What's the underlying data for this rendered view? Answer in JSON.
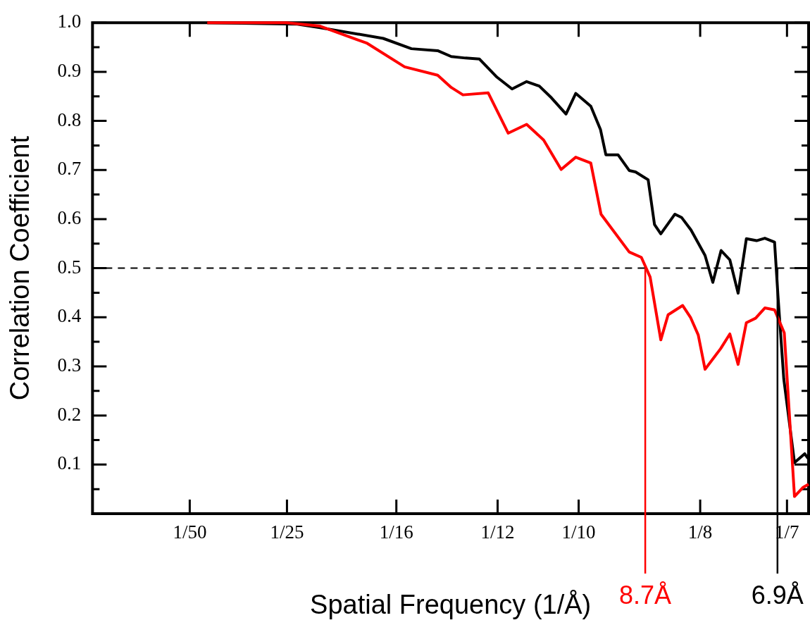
{
  "chart_data": {
    "type": "line",
    "xlabel": "Spatial Frequency (1/Å)",
    "ylabel": "Correlation Coefficient",
    "marker": "none",
    "line_style": "solid",
    "xlim": [
      0,
      0.1473
    ],
    "xticks": [
      {
        "value": 0.02,
        "label": "1/50"
      },
      {
        "value": 0.04,
        "label": "1/25"
      },
      {
        "value": 0.0625,
        "label": "1/16"
      },
      {
        "value": 0.08333,
        "label": "1/12"
      },
      {
        "value": 0.1,
        "label": "1/10"
      },
      {
        "value": 0.125,
        "label": "1/8"
      },
      {
        "value": 0.142857,
        "label": "1/7"
      }
    ],
    "ylim": [
      0,
      1
    ],
    "yticks": [
      {
        "value": 0.05,
        "label": null
      },
      0.1,
      {
        "value": 0.15,
        "label": null
      },
      0.2,
      {
        "value": 0.25,
        "label": null
      },
      0.3,
      {
        "value": 0.35,
        "label": null
      },
      0.4,
      {
        "value": 0.45,
        "label": null
      },
      0.5,
      {
        "value": 0.55,
        "label": null
      },
      0.6,
      {
        "value": 0.65,
        "label": null
      },
      0.7,
      {
        "value": 0.75,
        "label": null
      },
      0.8,
      {
        "value": 0.85,
        "label": null
      },
      0.9,
      {
        "value": 0.95,
        "label": null
      },
      {
        "value": 1,
        "label": "1.0"
      }
    ],
    "series": [
      {
        "color": "#000000",
        "x": [
          0.0236,
          0.0421,
          0.0468,
          0.0598,
          0.0656,
          0.071,
          0.0738,
          0.0767,
          0.0796,
          0.0832,
          0.0863,
          0.0893,
          0.0919,
          0.0944,
          0.0974,
          0.0994,
          0.1025,
          0.1045,
          0.1056,
          0.1081,
          0.1104,
          0.1117,
          0.1143,
          0.1156,
          0.1169,
          0.1198,
          0.1212,
          0.1231,
          0.126,
          0.1276,
          0.1293,
          0.1311,
          0.1328,
          0.1345,
          0.1366,
          0.1383,
          0.1403,
          0.141,
          0.1422,
          0.1444,
          0.1465,
          0.1473
        ],
        "values": [
          1.0,
          0.997,
          0.99,
          0.968,
          0.947,
          0.943,
          0.931,
          0.928,
          0.926,
          0.889,
          0.865,
          0.88,
          0.871,
          0.847,
          0.814,
          0.856,
          0.83,
          0.782,
          0.731,
          0.731,
          0.699,
          0.696,
          0.68,
          0.589,
          0.57,
          0.61,
          0.603,
          0.578,
          0.526,
          0.471,
          0.536,
          0.517,
          0.449,
          0.56,
          0.556,
          0.561,
          0.553,
          0.444,
          0.274,
          0.104,
          0.122,
          0.111
        ]
      },
      {
        "color": "#ff0000",
        "x": [
          0.0236,
          0.0399,
          0.0468,
          0.0565,
          0.0642,
          0.071,
          0.0738,
          0.0762,
          0.0814,
          0.0855,
          0.0893,
          0.0928,
          0.0964,
          0.0994,
          0.1025,
          0.1046,
          0.1104,
          0.1129,
          0.1147,
          0.1169,
          0.1184,
          0.1214,
          0.123,
          0.1246,
          0.126,
          0.1292,
          0.1311,
          0.1328,
          0.1345,
          0.1364,
          0.1383,
          0.1403,
          0.1423,
          0.1444,
          0.1461,
          0.1473
        ],
        "values": [
          1.0,
          1.0,
          0.993,
          0.958,
          0.91,
          0.893,
          0.868,
          0.853,
          0.857,
          0.775,
          0.793,
          0.761,
          0.701,
          0.726,
          0.714,
          0.61,
          0.533,
          0.522,
          0.482,
          0.354,
          0.405,
          0.424,
          0.4,
          0.364,
          0.294,
          0.336,
          0.366,
          0.304,
          0.389,
          0.398,
          0.419,
          0.415,
          0.368,
          0.035,
          0.053,
          0.06
        ]
      }
    ],
    "ref_lines": [
      {
        "axis": "y",
        "value": 0.5,
        "color": "#000000",
        "line_style": "dashed"
      },
      {
        "axis": "x",
        "value": 0.1137,
        "label": "8.7Å",
        "color": "#ff0000",
        "line_style": "solid"
      },
      {
        "axis": "x",
        "value": 0.1409,
        "label": "6.9Å",
        "color": "#000000",
        "line_style": "solid"
      }
    ]
  }
}
